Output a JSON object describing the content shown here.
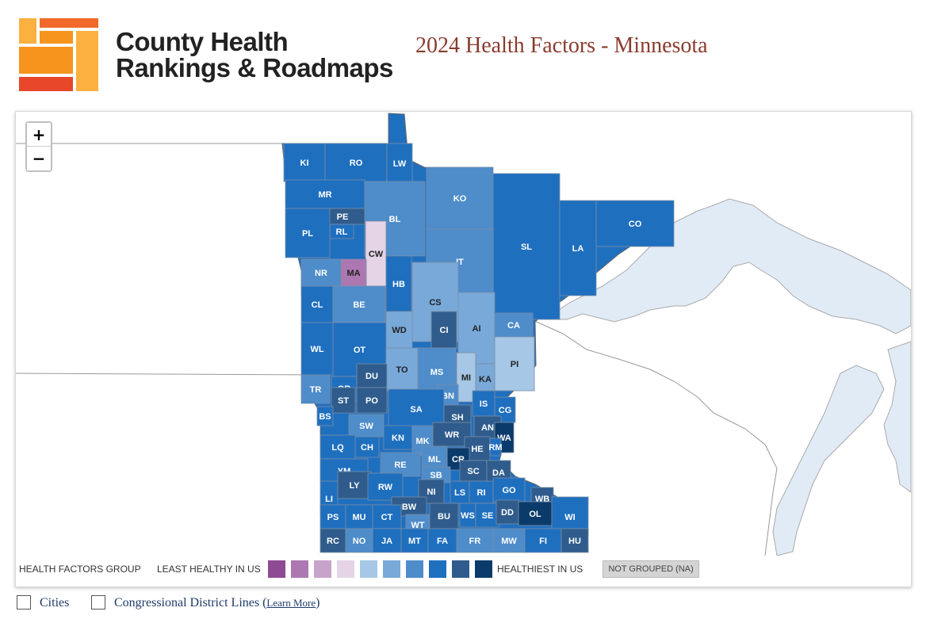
{
  "header": {
    "logo_line1": "County Health",
    "logo_line2": "Rankings & Roadmaps",
    "title": "2024 Health Factors - Minnesota"
  },
  "zoom": {
    "in_label": "+",
    "out_label": "−"
  },
  "colors": {
    "water": "#e0ebf6",
    "land_bg": "#ffffff",
    "logo_orange": "#f7941d",
    "logo_light": "#fbb040",
    "logo_red": "#e8472a"
  },
  "legend": {
    "group_label": "HEALTH FACTORS GROUP",
    "least_label": "LEAST HEALTHY IN US",
    "healthiest_label": "HEALTHIEST IN US",
    "na_label": "NOT GROUPED (NA)",
    "swatches": [
      "#8e4a93",
      "#ad78b2",
      "#c8a3c9",
      "#e4d4e6",
      "#a6c7e5",
      "#79a9d8",
      "#4e8cca",
      "#1f6fbf",
      "#2f5c8c",
      "#0b3b6b"
    ]
  },
  "counties": [
    {
      "abbr": "KI",
      "group": 8
    },
    {
      "abbr": "RO",
      "group": 8
    },
    {
      "abbr": "LW",
      "group": 8
    },
    {
      "abbr": "KO",
      "group": 7
    },
    {
      "abbr": "MR",
      "group": 8
    },
    {
      "abbr": "PE",
      "group": 9
    },
    {
      "abbr": "RL",
      "group": 8
    },
    {
      "abbr": "PL",
      "group": 8
    },
    {
      "abbr": "BL",
      "group": 7
    },
    {
      "abbr": "CW",
      "group": 4
    },
    {
      "abbr": "SL",
      "group": 8
    },
    {
      "abbr": "LA",
      "group": 8
    },
    {
      "abbr": "CO",
      "group": 8
    },
    {
      "abbr": "IT",
      "group": 7
    },
    {
      "abbr": "NR",
      "group": 7
    },
    {
      "abbr": "MA",
      "group": 2
    },
    {
      "abbr": "HB",
      "group": 8
    },
    {
      "abbr": "CL",
      "group": 8
    },
    {
      "abbr": "BE",
      "group": 7
    },
    {
      "abbr": "CS",
      "group": 6
    },
    {
      "abbr": "WD",
      "group": 6
    },
    {
      "abbr": "AI",
      "group": 6
    },
    {
      "abbr": "CA",
      "group": 7
    },
    {
      "abbr": "CI",
      "group": 9
    },
    {
      "abbr": "WL",
      "group": 8
    },
    {
      "abbr": "OT",
      "group": 8
    },
    {
      "abbr": "PI",
      "group": 5
    },
    {
      "abbr": "TO",
      "group": 6
    },
    {
      "abbr": "MS",
      "group": 7
    },
    {
      "abbr": "MI",
      "group": 5
    },
    {
      "abbr": "KA",
      "group": 6
    },
    {
      "abbr": "GR",
      "group": 8
    },
    {
      "abbr": "DU",
      "group": 9
    },
    {
      "abbr": "TR",
      "group": 7
    },
    {
      "abbr": "BN",
      "group": 7
    },
    {
      "abbr": "ST",
      "group": 9
    },
    {
      "abbr": "PO",
      "group": 9
    },
    {
      "abbr": "SA",
      "group": 8
    },
    {
      "abbr": "IS",
      "group": 8
    },
    {
      "abbr": "CG",
      "group": 8
    },
    {
      "abbr": "BS",
      "group": 8
    },
    {
      "abbr": "SH",
      "group": 9
    },
    {
      "abbr": "SW",
      "group": 7
    },
    {
      "abbr": "AN",
      "group": 9
    },
    {
      "abbr": "KN",
      "group": 8
    },
    {
      "abbr": "MK",
      "group": 7
    },
    {
      "abbr": "WR",
      "group": 9
    },
    {
      "abbr": "WA",
      "group": 10
    },
    {
      "abbr": "LQ",
      "group": 8
    },
    {
      "abbr": "CH",
      "group": 8
    },
    {
      "abbr": "HE",
      "group": 9
    },
    {
      "abbr": "RM",
      "group": 8
    },
    {
      "abbr": "CR",
      "group": 10
    },
    {
      "abbr": "RE",
      "group": 7
    },
    {
      "abbr": "ML",
      "group": 7
    },
    {
      "abbr": "YM",
      "group": 8
    },
    {
      "abbr": "SB",
      "group": 7
    },
    {
      "abbr": "SC",
      "group": 9
    },
    {
      "abbr": "DA",
      "group": 9
    },
    {
      "abbr": "LI",
      "group": 8
    },
    {
      "abbr": "LY",
      "group": 9
    },
    {
      "abbr": "RW",
      "group": 8
    },
    {
      "abbr": "NI",
      "group": 9
    },
    {
      "abbr": "LS",
      "group": 8
    },
    {
      "abbr": "RI",
      "group": 8
    },
    {
      "abbr": "GO",
      "group": 8
    },
    {
      "abbr": "BW",
      "group": 9
    },
    {
      "abbr": "WB",
      "group": 9
    },
    {
      "abbr": "PS",
      "group": 8
    },
    {
      "abbr": "MU",
      "group": 8
    },
    {
      "abbr": "CT",
      "group": 8
    },
    {
      "abbr": "WT",
      "group": 7
    },
    {
      "abbr": "BU",
      "group": 9
    },
    {
      "abbr": "WS",
      "group": 8
    },
    {
      "abbr": "SE",
      "group": 8
    },
    {
      "abbr": "DD",
      "group": 9
    },
    {
      "abbr": "OL",
      "group": 10
    },
    {
      "abbr": "WI",
      "group": 8
    },
    {
      "abbr": "RC",
      "group": 9
    },
    {
      "abbr": "NO",
      "group": 7
    },
    {
      "abbr": "JA",
      "group": 8
    },
    {
      "abbr": "MT",
      "group": 8
    },
    {
      "abbr": "FA",
      "group": 8
    },
    {
      "abbr": "FR",
      "group": 7
    },
    {
      "abbr": "MW",
      "group": 7
    },
    {
      "abbr": "FI",
      "group": 8
    },
    {
      "abbr": "HU",
      "group": 9
    }
  ],
  "toggles": {
    "cities_label": "Cities",
    "districts_label": "Congressional District Lines",
    "learn_more": "Learn More",
    "paren_open": "(",
    "paren_close": ")"
  }
}
